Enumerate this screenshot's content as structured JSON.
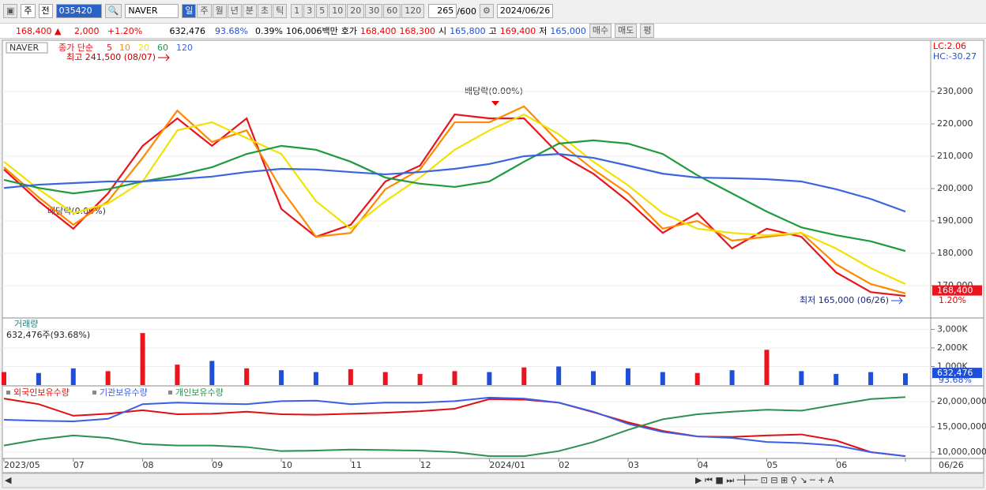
{
  "toolbar": {
    "period": "주",
    "mode": "전",
    "code": "035420",
    "name": "NAVER",
    "units": [
      "일",
      "주",
      "월",
      "년",
      "분",
      "초",
      "틱"
    ],
    "counts": [
      "1",
      "3",
      "5",
      "10",
      "20",
      "30",
      "60",
      "120"
    ],
    "shown": "265",
    "total": "/600",
    "date": "2024/06/26"
  },
  "quote": {
    "price": "168,400 ▲",
    "change": "2,000",
    "rate": "+1.20%",
    "volume": "632,476",
    "vol_ratio": "93.68%",
    "turnover": "0.39%",
    "amount": "106,006백만",
    "ask_label": "호가",
    "ask": "168,400",
    "bid": "168,300",
    "open_label": "시",
    "open": "165,800",
    "high_label": "고",
    "high": "169,400",
    "low_label": "저",
    "low": "165,000",
    "buy": "매수",
    "sell": "매도",
    "avg": "평"
  },
  "chart_data": [
    {
      "type": "line",
      "legend_title": "NAVER",
      "ma_label": "종가 단순",
      "categories": [
        "2023/05",
        null,
        "07",
        null,
        "08",
        null,
        "09",
        null,
        "10",
        null,
        "11",
        null,
        "12",
        null,
        "2024/01",
        null,
        "02",
        null,
        "03",
        null,
        "04",
        null,
        "05",
        null,
        "06",
        null,
        "06/26"
      ],
      "series": [
        {
          "name": "5",
          "color": "#e8141e",
          "values": [
            205900,
            196100,
            187600,
            198500,
            213200,
            221700,
            213200,
            221700,
            193700,
            185100,
            188800,
            202200,
            207100,
            222900,
            221700,
            221700,
            210700,
            204600,
            196100,
            186300,
            192400,
            181500,
            187600,
            185100,
            174100,
            168000,
            166800
          ]
        },
        {
          "name": "10",
          "color": "#ff8a00",
          "values": [
            206600,
            197300,
            188800,
            196100,
            209500,
            224100,
            214400,
            218000,
            199800,
            185100,
            186300,
            199800,
            205900,
            220500,
            220500,
            225400,
            214400,
            205900,
            198500,
            187600,
            190000,
            183900,
            185100,
            186300,
            176600,
            170500,
            167600
          ]
        },
        {
          "name": "20",
          "color": "#f2e200",
          "values": [
            208300,
            199800,
            192400,
            195400,
            202200,
            218000,
            220500,
            215600,
            210700,
            196100,
            187600,
            196100,
            203400,
            212000,
            218000,
            222900,
            216800,
            208300,
            201000,
            192400,
            187600,
            186300,
            185600,
            186300,
            181500,
            175400,
            170500
          ]
        },
        {
          "name": "60",
          "color": "#1f9a3c",
          "values": [
            202700,
            200200,
            198500,
            199800,
            202200,
            204100,
            206600,
            210700,
            213200,
            212000,
            208300,
            203400,
            201500,
            200500,
            202200,
            208300,
            213900,
            214900,
            213900,
            210700,
            204100,
            198500,
            192900,
            188000,
            185600,
            183700,
            180700
          ]
        },
        {
          "name": "120",
          "color": "#3a64e0",
          "values": [
            200200,
            201200,
            201700,
            202200,
            202200,
            202900,
            203700,
            205100,
            206100,
            205900,
            205100,
            204400,
            205100,
            206100,
            207600,
            210000,
            210700,
            209500,
            207100,
            204600,
            203400,
            203200,
            202900,
            202200,
            199800,
            196800,
            192900
          ]
        }
      ],
      "ylim": [
        160250,
        245600
      ],
      "yticks": [
        {
          "value": 170000,
          "label": "170,000"
        },
        {
          "value": 180000,
          "label": "180,000"
        },
        {
          "value": 190000,
          "label": "190,000"
        },
        {
          "value": 200000,
          "label": "200,000"
        },
        {
          "value": 210000,
          "label": "210,000"
        },
        {
          "value": 220000,
          "label": "220,000"
        },
        {
          "value": 230000,
          "label": "230,000"
        }
      ],
      "annotations": {
        "high": "최고 241,500 (08/07)",
        "ex_div_1": "배당락(0.00%)",
        "ex_div_2": "배당락(0.00%)",
        "low": "최저 165,000 (06/26)"
      },
      "lc": "LC:2.06",
      "hc": "HC:-30.27",
      "last_price": {
        "value": 168400,
        "label": "168,400"
      },
      "last_rate": "1.20%"
    },
    {
      "type": "bar",
      "title": "거래량",
      "subtitle": "632,476주(93.68%)",
      "up_color": "#e8141e",
      "down_color": "#1f4fd8",
      "values": [
        700,
        650,
        900,
        750,
        2800,
        1100,
        1300,
        900,
        800,
        700,
        850,
        700,
        600,
        750,
        700,
        950,
        1000,
        750,
        900,
        700,
        650,
        800,
        1900,
        750,
        600,
        700,
        632.476
      ],
      "ylim": [
        0,
        3570
      ],
      "yticks": [
        {
          "value": 1000,
          "label": "1,000K"
        },
        {
          "value": 2000,
          "label": "2,000K"
        },
        {
          "value": 3000,
          "label": "3,000K"
        }
      ],
      "last_label": "632,476",
      "last_rate": "93.68%"
    },
    {
      "type": "line",
      "series": [
        {
          "name": "외국인보유수량",
          "color": "#e01010",
          "values": [
            20600000,
            19500000,
            17200000,
            17600000,
            18300000,
            17500000,
            17600000,
            18000000,
            17500000,
            17400000,
            17600000,
            17800000,
            18100000,
            18600000,
            20500000,
            20400000,
            19800000,
            17900000,
            15900000,
            14200000,
            13100000,
            13000000,
            13300000,
            13500000,
            12300000,
            10000000,
            9200000
          ]
        },
        {
          "name": "기관보유수량",
          "color": "#3a5ee8",
          "values": [
            16400000,
            16200000,
            16100000,
            16600000,
            19500000,
            19800000,
            19600000,
            19500000,
            20100000,
            20200000,
            19500000,
            19800000,
            19800000,
            20100000,
            20800000,
            20600000,
            19800000,
            18000000,
            15600000,
            14000000,
            13100000,
            12800000,
            12000000,
            11800000,
            11300000,
            10000000,
            9200000
          ]
        },
        {
          "name": "개인보유수량",
          "color": "#2e9050",
          "values": [
            11300000,
            12500000,
            13300000,
            12800000,
            11600000,
            11300000,
            11300000,
            11000000,
            10200000,
            10300000,
            10500000,
            10400000,
            10300000,
            10000000,
            9200000,
            9200000,
            10200000,
            12000000,
            14400000,
            16500000,
            17500000,
            18000000,
            18400000,
            18200000,
            19400000,
            20500000,
            20900000
          ]
        }
      ],
      "ylim": [
        8900000,
        22970000
      ],
      "yticks": [
        {
          "value": 10000000,
          "label": "10,000,000"
        },
        {
          "value": 15000000,
          "label": "15,000,000"
        },
        {
          "value": 20000000,
          "label": "20,000,000"
        }
      ]
    }
  ]
}
